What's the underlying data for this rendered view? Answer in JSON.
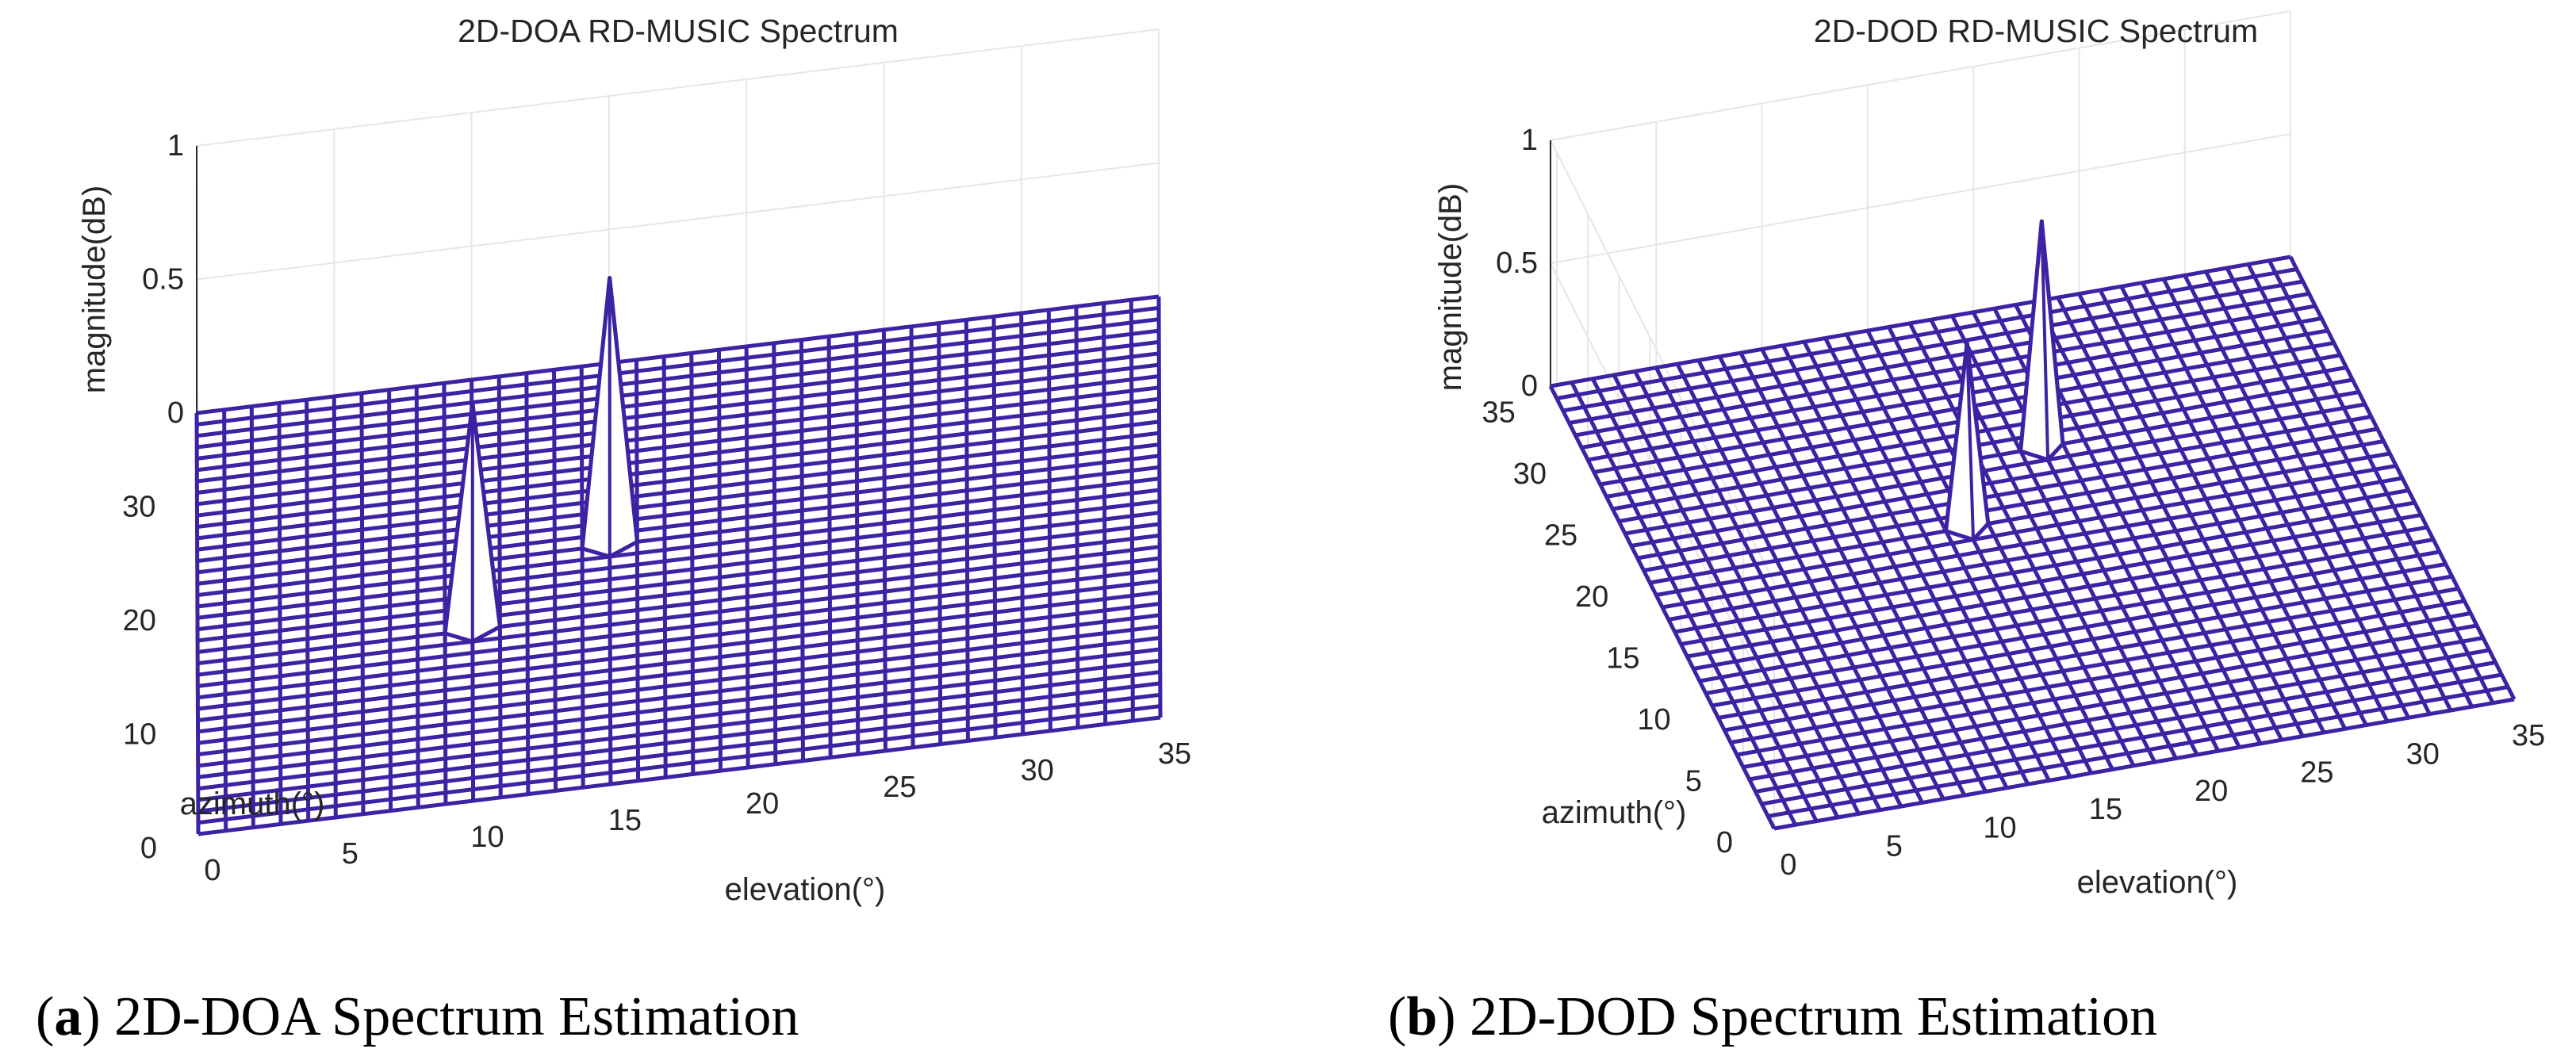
{
  "chart_data": [
    {
      "type": "surface3d",
      "title": "2D-DOA RD-MUSIC Spectrum",
      "xlabel": "elevation(°)",
      "ylabel": "azimuth(°)",
      "zlabel": "magnitude(dB)",
      "xlim": [
        0,
        35
      ],
      "ylim": [
        0,
        37
      ],
      "zlim": [
        0,
        1
      ],
      "xticks": [
        "0",
        "5",
        "10",
        "15",
        "20",
        "25",
        "30",
        "35"
      ],
      "yticks": [
        "0",
        "10",
        "20",
        "30"
      ],
      "zticks": [
        "0",
        "0.5",
        "1"
      ],
      "mesh_step": 1,
      "surface_color": "#3d22a3",
      "peaks": [
        {
          "elevation": 10,
          "azimuth": 15,
          "magnitude": 0.85
        },
        {
          "elevation": 15,
          "azimuth": 21,
          "magnitude": 1.0
        }
      ],
      "caption_label": "a",
      "caption_text": "2D-DOA Spectrum Estimation"
    },
    {
      "type": "surface3d",
      "title": "2D-DOD RD-MUSIC Spectrum",
      "xlabel": "elevation(°)",
      "ylabel": "azimuth(°)",
      "zlabel": "magnitude(dB)",
      "xlim": [
        0,
        35
      ],
      "ylim": [
        0,
        36
      ],
      "zlim": [
        0,
        1
      ],
      "xticks": [
        "0",
        "5",
        "10",
        "15",
        "20",
        "25",
        "30",
        "35"
      ],
      "yticks": [
        "0",
        "5",
        "10",
        "15",
        "20",
        "25",
        "30",
        "35"
      ],
      "zticks": [
        "0",
        "0.5",
        "1"
      ],
      "mesh_step": 1,
      "surface_color": "#3d22a3",
      "peaks": [
        {
          "elevation": 15,
          "azimuth": 20,
          "magnitude": 0.75
        },
        {
          "elevation": 20,
          "azimuth": 25,
          "magnitude": 0.92
        }
      ],
      "caption_label": "b",
      "caption_text": "2D-DOD Spectrum Estimation"
    }
  ]
}
